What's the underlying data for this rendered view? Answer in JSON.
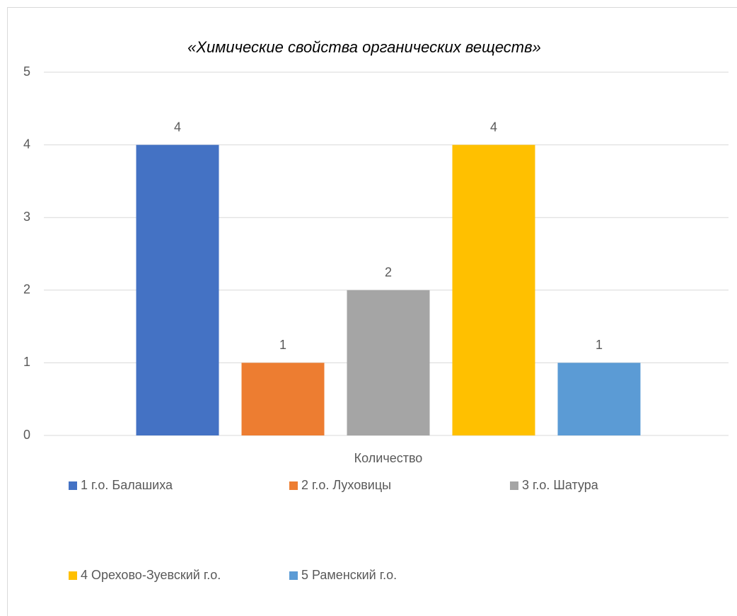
{
  "chart_data": {
    "type": "bar",
    "title": "«Химические свойства органических веществ»",
    "categories": [
      "Количество"
    ],
    "series": [
      {
        "name": "1 г.о. Балашиха",
        "color": "#4472c4",
        "values": [
          4
        ]
      },
      {
        "name": "2 г.о. Луховицы",
        "color": "#ed7d31",
        "values": [
          1
        ]
      },
      {
        "name": "3 г.о. Шатура",
        "color": "#a5a5a5",
        "values": [
          2
        ]
      },
      {
        "name": "4 Орехово-Зуевский г.о.",
        "color": "#ffc000",
        "values": [
          4
        ]
      },
      {
        "name": "5 Раменский г.о.",
        "color": "#5b9bd5",
        "values": [
          1
        ]
      }
    ],
    "ylim": [
      0,
      5
    ],
    "yticks": [
      0,
      1,
      2,
      3,
      4,
      5
    ],
    "grid": true,
    "legend": "bottom"
  }
}
